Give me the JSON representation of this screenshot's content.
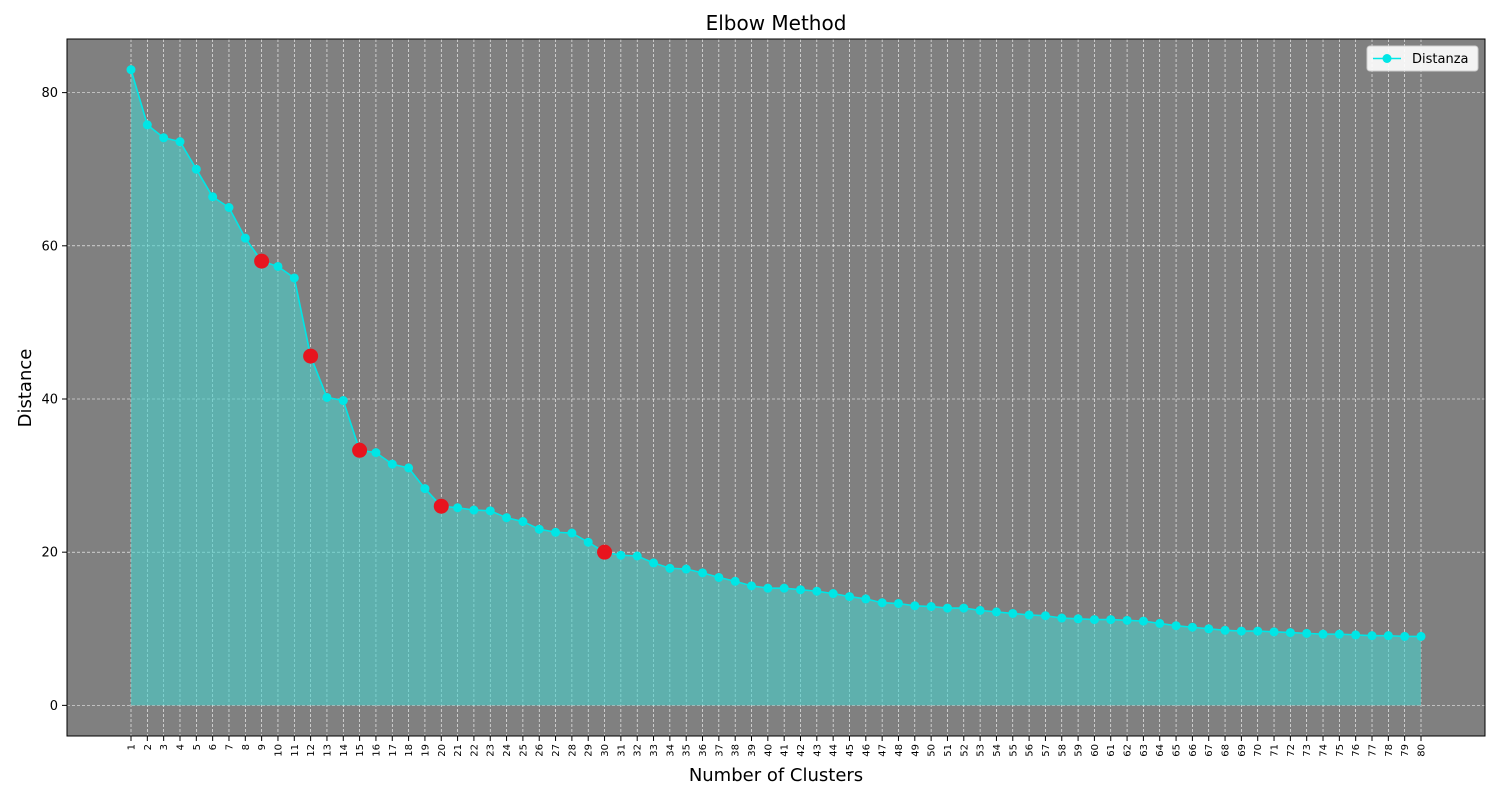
{
  "chart_data": {
    "type": "line",
    "title": "Elbow Method",
    "xlabel": "Number of Clusters",
    "ylabel": "Distance",
    "x": [
      1,
      2,
      3,
      4,
      5,
      6,
      7,
      8,
      9,
      10,
      11,
      12,
      13,
      14,
      15,
      16,
      17,
      18,
      19,
      20,
      21,
      22,
      23,
      24,
      25,
      26,
      27,
      28,
      29,
      30,
      31,
      32,
      33,
      34,
      35,
      36,
      37,
      38,
      39,
      40,
      41,
      42,
      43,
      44,
      45,
      46,
      47,
      48,
      49,
      50,
      51,
      52,
      53,
      54,
      55,
      56,
      57,
      58,
      59,
      60,
      61,
      62,
      63,
      64,
      65,
      66,
      67,
      68,
      69,
      70,
      71,
      72,
      73,
      74,
      75,
      76,
      77,
      78,
      79,
      80
    ],
    "series": [
      {
        "name": "Distanza",
        "values": [
          83.0,
          75.8,
          74.1,
          73.6,
          70.0,
          66.4,
          65.0,
          61.0,
          58.0,
          57.3,
          55.8,
          45.6,
          40.2,
          39.8,
          33.3,
          33.0,
          31.5,
          31.0,
          28.3,
          26.0,
          25.8,
          25.5,
          25.4,
          24.5,
          24.0,
          23.0,
          22.6,
          22.5,
          21.3,
          20.0,
          19.6,
          19.5,
          18.6,
          17.9,
          17.8,
          17.3,
          16.7,
          16.2,
          15.6,
          15.3,
          15.3,
          15.1,
          14.9,
          14.6,
          14.2,
          13.9,
          13.4,
          13.3,
          13.0,
          12.9,
          12.7,
          12.7,
          12.4,
          12.2,
          12.0,
          11.8,
          11.7,
          11.4,
          11.3,
          11.2,
          11.2,
          11.1,
          11.0,
          10.7,
          10.4,
          10.2,
          10.0,
          9.8,
          9.7,
          9.7,
          9.6,
          9.5,
          9.4,
          9.3,
          9.3,
          9.2,
          9.1,
          9.1,
          9.0,
          9.0
        ],
        "color": "#00e6e6",
        "fill_color": "#48d1cc"
      }
    ],
    "highlights": {
      "x": [
        9,
        12,
        15,
        20,
        30
      ],
      "color": "#e8141e"
    },
    "ylim": [
      -4,
      87
    ],
    "yticks": [
      0,
      20,
      40,
      60,
      80
    ],
    "grid": true,
    "legend_position": "top-right",
    "background": "#808080"
  }
}
